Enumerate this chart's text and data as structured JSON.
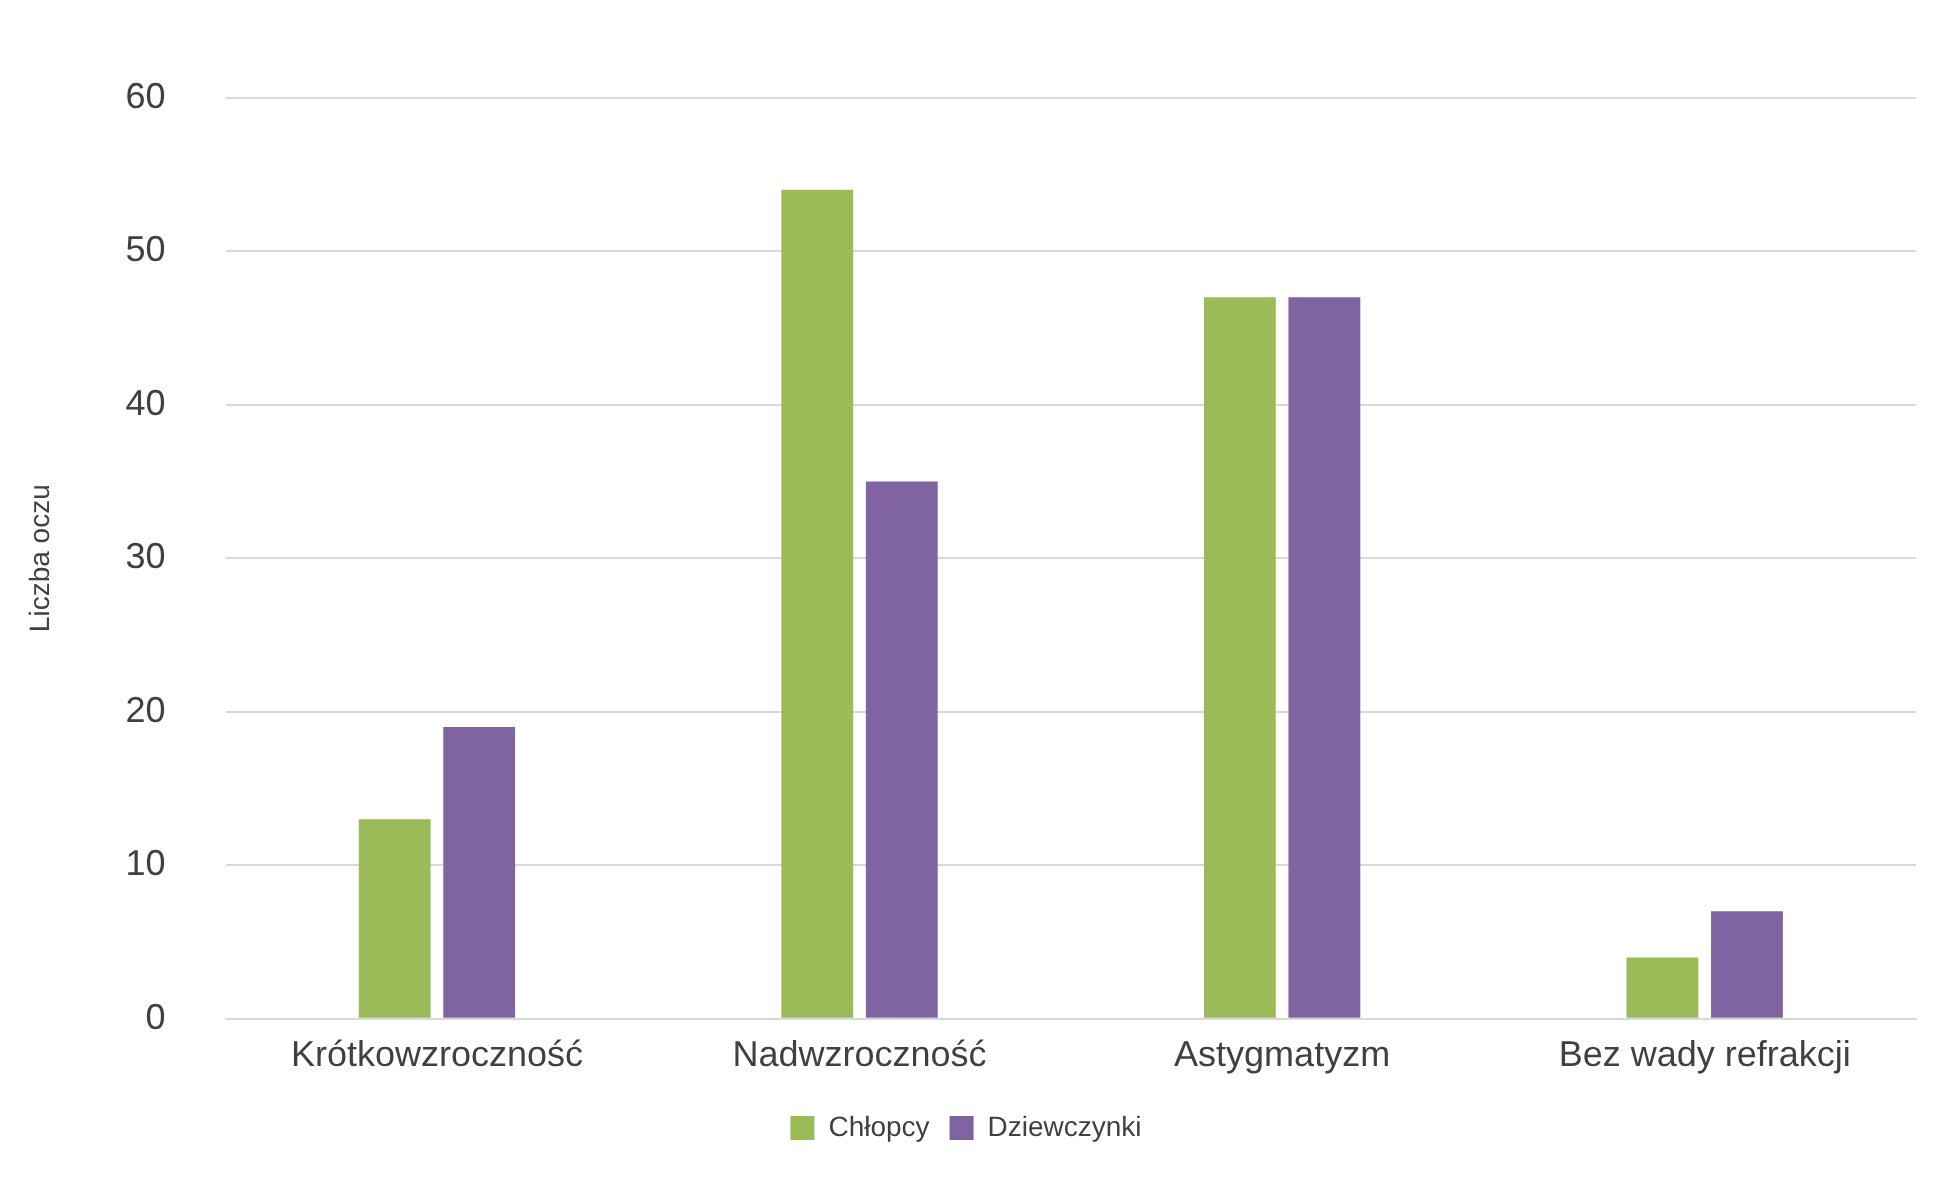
{
  "chart_data": {
    "type": "bar",
    "ylabel": "Liczba oczu",
    "categories": [
      "Krótkowzroczność",
      "Nadwzroczność",
      "Astygmatyzm",
      "Bez wady refrakcji"
    ],
    "series": [
      {
        "name": "Chłopcy",
        "color": "#9bbb59",
        "values": [
          13,
          54,
          47,
          4
        ]
      },
      {
        "name": "Dziewczynki",
        "color": "#8064a2",
        "values": [
          19,
          35,
          47,
          7
        ]
      }
    ],
    "ylim": [
      0,
      60
    ],
    "yticks": [
      0,
      10,
      20,
      30,
      40,
      50,
      60
    ],
    "grid": "y",
    "legend": "bottom"
  }
}
